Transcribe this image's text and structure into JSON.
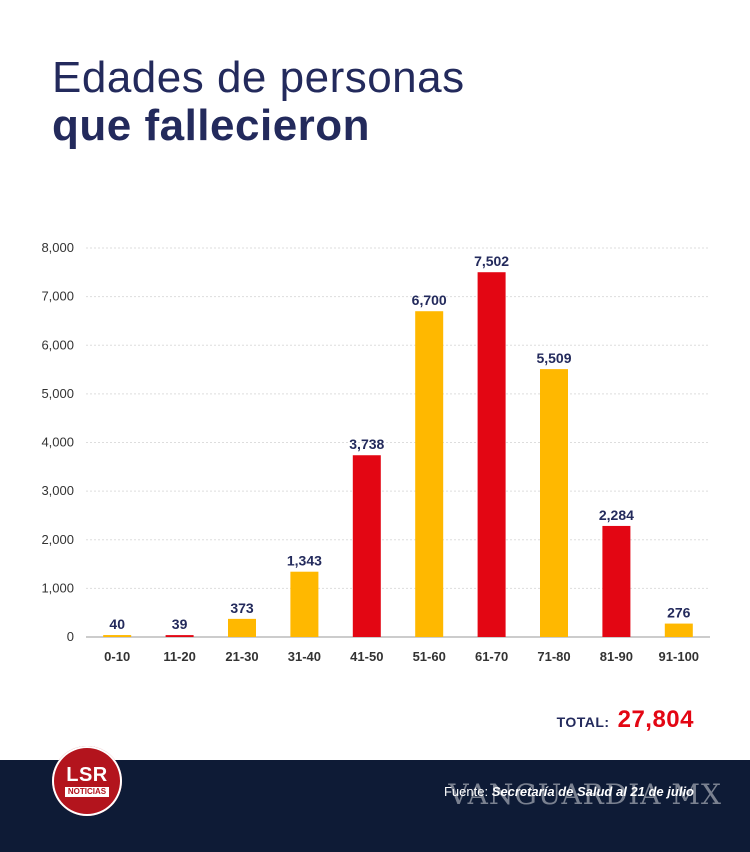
{
  "title": {
    "line1": "Edades de personas",
    "line2": "que fallecieron"
  },
  "chart_data": {
    "type": "bar",
    "categories": [
      "0-10",
      "11-20",
      "21-30",
      "31-40",
      "41-50",
      "51-60",
      "61-70",
      "71-80",
      "81-90",
      "91-100"
    ],
    "values": [
      40,
      39,
      373,
      1343,
      3738,
      6700,
      7502,
      5509,
      2284,
      276
    ],
    "value_labels": [
      "40",
      "39",
      "373",
      "1,343",
      "3,738",
      "6,700",
      "7,502",
      "5,509",
      "2,284",
      "276"
    ],
    "bar_colors": [
      "#ffb800",
      "#e30613",
      "#ffb800",
      "#ffb800",
      "#e30613",
      "#ffb800",
      "#e30613",
      "#ffb800",
      "#e30613",
      "#ffb800"
    ],
    "yticks": [
      0,
      1000,
      2000,
      3000,
      4000,
      5000,
      6000,
      7000,
      8000
    ],
    "ytick_labels": [
      "0",
      "1,000",
      "2,000",
      "3,000",
      "4,000",
      "5,000",
      "6,000",
      "7,000",
      "8,000"
    ],
    "ylim": [
      0,
      8000
    ],
    "grid": true,
    "xlabel": "",
    "ylabel": ""
  },
  "total": {
    "label": "TOTAL:",
    "value": "27,804"
  },
  "footer": {
    "logo_main": "LSR",
    "logo_sub": "NOTICIAS",
    "source_label": "Fuente:",
    "source_text": "Secretaría de Salud al 21 de julio",
    "watermark": "VANGUARDIA MX"
  },
  "colors": {
    "title": "#232a5c",
    "accent_red": "#e30613",
    "accent_yellow": "#ffb800",
    "footer_bg": "#0e1b36"
  }
}
